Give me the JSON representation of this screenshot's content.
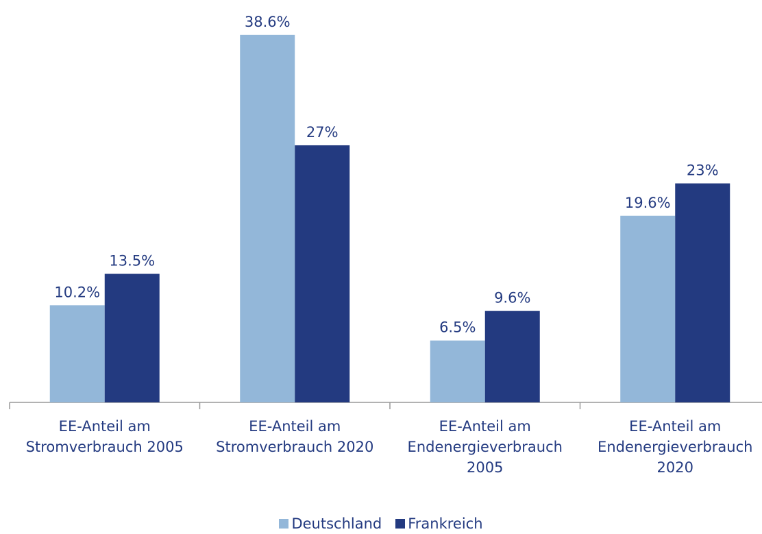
{
  "chart_data": {
    "type": "bar",
    "categories": [
      "EE-Anteil am\nStromverbrauch 2005",
      "EE-Anteil am\nStromverbrauch 2020",
      "EE-Anteil am\nEndenergieverbrauch\n2005",
      "EE-Anteil am\nEndenergieverbrauch\n2020"
    ],
    "series": [
      {
        "name": "Deutschland",
        "color": "#93b7d9",
        "values": [
          10.2,
          38.6,
          6.5,
          19.6
        ],
        "value_labels": [
          "10.2%",
          "38.6%",
          "6.5%",
          "19.6%"
        ]
      },
      {
        "name": "Frankreich",
        "color": "#233a80",
        "values": [
          13.5,
          27,
          9.6,
          23
        ],
        "value_labels": [
          "13.5%",
          "27%",
          "9.6%",
          "23%"
        ]
      }
    ],
    "ylim": [
      0,
      40
    ],
    "legend": "bottom"
  }
}
